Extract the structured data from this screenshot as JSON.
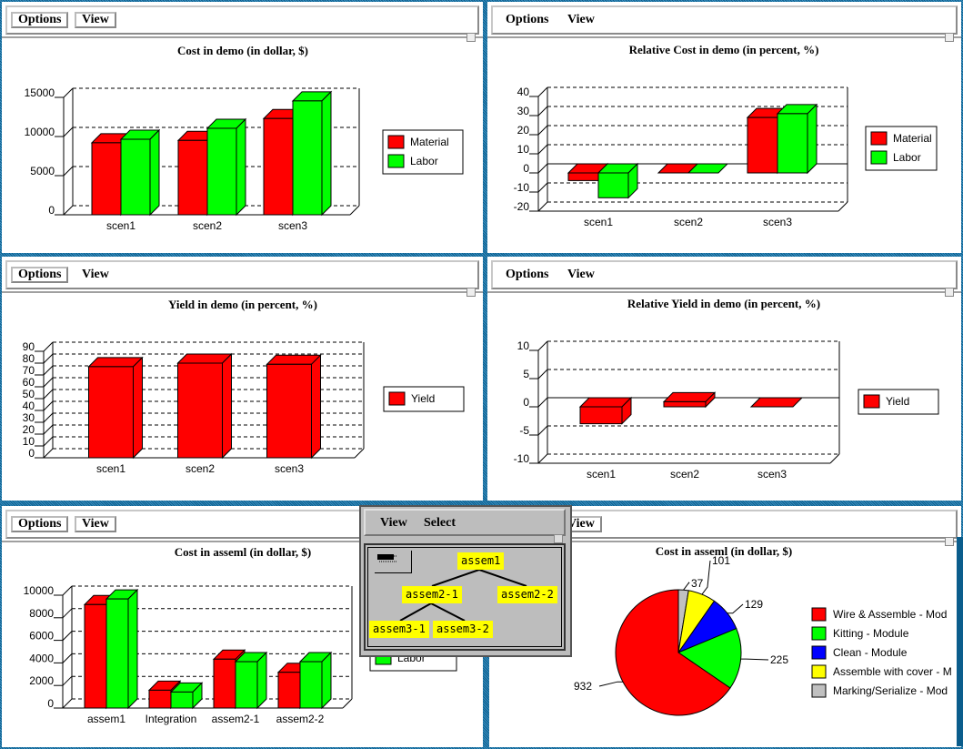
{
  "panels": [
    {
      "id": "cost-demo",
      "menu": [
        "Options",
        "View"
      ]
    },
    {
      "id": "relative-cost-demo",
      "menu": [
        "Options",
        "View"
      ]
    },
    {
      "id": "yield-demo",
      "menu": [
        "Options",
        "View"
      ]
    },
    {
      "id": "relative-yield-demo",
      "menu": [
        "Options",
        "View"
      ]
    },
    {
      "id": "cost-assem1-bar",
      "menu": [
        "Options",
        "View"
      ]
    },
    {
      "id": "cost-assem1-pie",
      "menu": [
        "View"
      ]
    }
  ],
  "tree_popup": {
    "menu": [
      "View",
      "Select"
    ],
    "nodes": [
      "assem1",
      "assem2-1",
      "assem2-2",
      "assem3-1",
      "assem3-2"
    ]
  },
  "colors": {
    "material": "#ff0000",
    "labor": "#00ff00",
    "clean": "#0000ff",
    "assemble": "#ffff00",
    "marking": "#c0c0c0",
    "node": "#ffff00"
  },
  "chart_data": [
    {
      "type": "bar",
      "title": "Cost in demo (in dollar, $)",
      "categories": [
        "scen1",
        "scen2",
        "scen3"
      ],
      "ylim": [
        0,
        15000
      ],
      "yticks": [
        0,
        5000,
        10000,
        15000
      ],
      "grid": true,
      "legend": "right",
      "series": [
        {
          "name": "Material",
          "color": "#ff0000",
          "values": [
            9200,
            9500,
            12300
          ]
        },
        {
          "name": "Labor",
          "color": "#00ff00",
          "values": [
            9650,
            11050,
            14550
          ]
        }
      ]
    },
    {
      "type": "bar",
      "title": "Relative Cost in demo (in percent, %)",
      "categories": [
        "scen1",
        "scen2",
        "scen3"
      ],
      "ylim": [
        -20,
        40
      ],
      "yticks": [
        -20,
        -10,
        0,
        10,
        20,
        30,
        40
      ],
      "grid": true,
      "legend": "right",
      "series": [
        {
          "name": "Material",
          "color": "#ff0000",
          "values": [
            -4,
            0,
            29
          ]
        },
        {
          "name": "Labor",
          "color": "#00ff00",
          "values": [
            -13,
            0,
            31
          ]
        }
      ]
    },
    {
      "type": "bar",
      "title": "Yield in demo (in percent, %)",
      "categories": [
        "scen1",
        "scen2",
        "scen3"
      ],
      "ylim": [
        0,
        90
      ],
      "yticks": [
        0,
        10,
        20,
        30,
        40,
        50,
        60,
        70,
        80,
        90
      ],
      "grid": true,
      "legend": "right",
      "series": [
        {
          "name": "Yield",
          "color": "#ff0000",
          "values": [
            77,
            80,
            79
          ]
        }
      ]
    },
    {
      "type": "bar",
      "title": "Relative Yield in demo (in percent, %)",
      "categories": [
        "scen1",
        "scen2",
        "scen3"
      ],
      "ylim": [
        -10,
        10
      ],
      "yticks": [
        -10,
        -5,
        0,
        5,
        10
      ],
      "grid": true,
      "legend": "right",
      "series": [
        {
          "name": "Yield",
          "color": "#ff0000",
          "values": [
            -3,
            0.9,
            0
          ]
        }
      ]
    },
    {
      "type": "bar",
      "title": "Cost in asseml (in dollar, $)",
      "categories": [
        "assem1",
        "Integration",
        "assem2-1",
        "assem2-2"
      ],
      "ylim": [
        0,
        10000
      ],
      "yticks": [
        0,
        2000,
        4000,
        6000,
        8000,
        10000
      ],
      "grid": true,
      "legend": "right",
      "series": [
        {
          "name": "Material",
          "color": "#ff0000",
          "values": [
            9170,
            1580,
            4330,
            3170
          ]
        },
        {
          "name": "Labor",
          "color": "#00ff00",
          "values": [
            9670,
            1420,
            4110,
            4110
          ]
        }
      ]
    },
    {
      "type": "pie",
      "title": "Cost in asseml (in dollar, $)",
      "legend": "right",
      "slices": [
        {
          "label": "Marking/Serialize - Mod",
          "value": 37,
          "color": "#c0c0c0"
        },
        {
          "label": "Assemble with cover - M",
          "value": 101,
          "color": "#ffff00"
        },
        {
          "label": "Clean - Module",
          "value": 129,
          "color": "#0000ff"
        },
        {
          "label": "Kitting - Module",
          "value": 225,
          "color": "#00ff00"
        },
        {
          "label": "Wire & Assemble - Mod",
          "value": 932,
          "color": "#ff0000"
        }
      ],
      "legend_order": [
        4,
        3,
        2,
        1,
        0
      ]
    }
  ]
}
